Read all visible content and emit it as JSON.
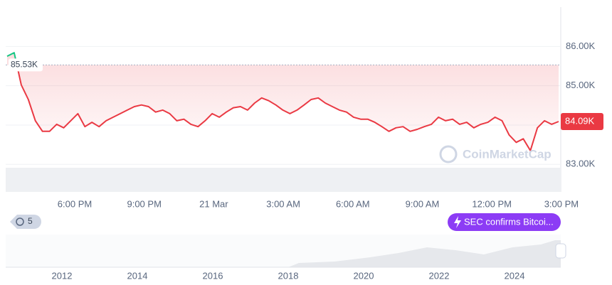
{
  "chart_data": {
    "type": "line",
    "series": [
      {
        "colors": {
          "above": "#16c784",
          "below": "#ea3943"
        },
        "values": [
          85750,
          85840,
          85020,
          84650,
          84110,
          83840,
          83840,
          84020,
          83930,
          84110,
          84290,
          83960,
          84070,
          83960,
          84110,
          84200,
          84290,
          84380,
          84470,
          84510,
          84470,
          84330,
          84380,
          84290,
          84110,
          84150,
          84020,
          83960,
          84110,
          84290,
          84200,
          84330,
          84440,
          84470,
          84380,
          84560,
          84690,
          84620,
          84510,
          84380,
          84290,
          84380,
          84510,
          84650,
          84690,
          84560,
          84470,
          84380,
          84330,
          84200,
          84150,
          84150,
          84070,
          83960,
          83840,
          83930,
          83960,
          83840,
          83890,
          83960,
          84020,
          84200,
          84110,
          84150,
          84020,
          84070,
          83930,
          84020,
          84070,
          84200,
          84110,
          83750,
          83560,
          83650,
          83350,
          83930,
          84110,
          84020,
          84090
        ]
      }
    ],
    "baseline": {
      "value": 85530,
      "label": "85.53K"
    },
    "last_price": {
      "value": 84090,
      "label": "84.09K"
    },
    "ylim": [
      82300,
      87000
    ],
    "yticks": [
      {
        "value": 83000,
        "label": "83.00K"
      },
      {
        "value": 84000,
        "label": "84.00K"
      },
      {
        "value": 85000,
        "label": "85.00K"
      },
      {
        "value": 86000,
        "label": "86.00K"
      }
    ],
    "grid": true,
    "xticks": [
      "6:00 PM",
      "9:00 PM",
      "21 Mar",
      "3:00 AM",
      "6:00 AM",
      "9:00 AM",
      "12:00 PM",
      "3:00 PM"
    ],
    "watermark": "CoinMarketCap",
    "annotation": "SEC confirms Bitcoi...",
    "history_badge": "5",
    "overview_years": [
      2012,
      2014,
      2016,
      2018,
      2020,
      2022,
      2024
    ]
  }
}
